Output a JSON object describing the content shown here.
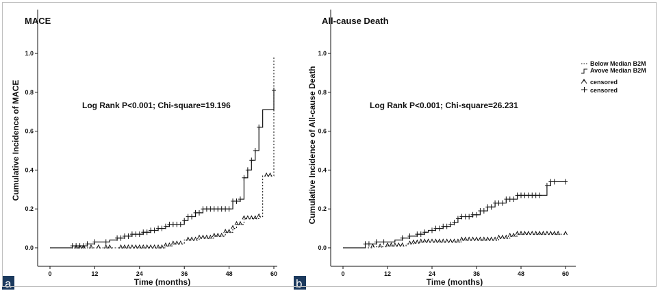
{
  "chart_data": [
    {
      "type": "line",
      "title": "MACE",
      "panel_label": "a",
      "xlabel": "Time (months)",
      "ylabel": "Cumulative Incidence of MACE",
      "xlim": [
        0,
        60
      ],
      "ylim": [
        0,
        1.0
      ],
      "xticks": [
        0,
        12,
        24,
        36,
        48,
        60
      ],
      "yticks": [
        0.0,
        0.2,
        0.4,
        0.6,
        0.8,
        1.0
      ],
      "annotation": "Log Rank P<0.001; Chi-square=19.196",
      "series": [
        {
          "style": "dotted",
          "points": [
            [
              0,
              0
            ],
            [
              10,
              0
            ],
            [
              30,
              0
            ],
            [
              31,
              0.01
            ],
            [
              33,
              0.02
            ],
            [
              36,
              0.04
            ],
            [
              40,
              0.05
            ],
            [
              44,
              0.06
            ],
            [
              47,
              0.08
            ],
            [
              49,
              0.1
            ],
            [
              50,
              0.12
            ],
            [
              52,
              0.15
            ],
            [
              56,
              0.16
            ],
            [
              57,
              0.37
            ],
            [
              60,
              0.37
            ],
            [
              60,
              0.98
            ]
          ],
          "censored": [
            7,
            8,
            9,
            11,
            13,
            15,
            16,
            19,
            20,
            21,
            22,
            23,
            24,
            25,
            26,
            27,
            28,
            29,
            30,
            31,
            32,
            33,
            34,
            35,
            37,
            38,
            39,
            40,
            41,
            42,
            43,
            44,
            45,
            46,
            47,
            48,
            49,
            50,
            51,
            52,
            53,
            54,
            55,
            56,
            58,
            59
          ]
        },
        {
          "style": "solid",
          "points": [
            [
              0,
              0
            ],
            [
              5,
              0
            ],
            [
              6,
              0.01
            ],
            [
              10,
              0.02
            ],
            [
              12,
              0.03
            ],
            [
              16,
              0.04
            ],
            [
              18,
              0.05
            ],
            [
              20,
              0.06
            ],
            [
              22,
              0.07
            ],
            [
              25,
              0.08
            ],
            [
              27,
              0.09
            ],
            [
              29,
              0.1
            ],
            [
              31,
              0.11
            ],
            [
              32,
              0.12
            ],
            [
              36,
              0.14
            ],
            [
              37,
              0.16
            ],
            [
              39,
              0.18
            ],
            [
              41,
              0.2
            ],
            [
              48,
              0.2
            ],
            [
              49,
              0.24
            ],
            [
              51,
              0.25
            ],
            [
              52,
              0.36
            ],
            [
              53,
              0.4
            ],
            [
              54,
              0.45
            ],
            [
              55,
              0.5
            ],
            [
              56,
              0.62
            ],
            [
              57,
              0.71
            ],
            [
              60,
              0.71
            ],
            [
              60,
              0.81
            ]
          ],
          "censored": [
            6,
            7,
            8,
            9,
            10,
            12,
            15,
            18,
            19,
            20,
            21,
            22,
            23,
            24,
            25,
            26,
            27,
            28,
            29,
            30,
            31,
            32,
            33,
            34,
            35,
            36,
            37,
            38,
            39,
            40,
            41,
            42,
            43,
            44,
            45,
            46,
            47,
            48,
            49,
            50,
            51,
            52,
            53,
            54,
            55,
            56,
            60
          ]
        }
      ]
    },
    {
      "type": "line",
      "title": "All-cause Death",
      "panel_label": "b",
      "xlabel": "Time (months)",
      "ylabel": "Cumulative Incidence of All-cause Death",
      "xlim": [
        0,
        60
      ],
      "ylim": [
        0,
        1.0
      ],
      "xticks": [
        0,
        12,
        24,
        36,
        48,
        60
      ],
      "yticks": [
        0.0,
        0.2,
        0.4,
        0.6,
        0.8,
        1.0
      ],
      "annotation": "Log Rank P<0.001; Chi-square=26.231",
      "series": [
        {
          "style": "dotted",
          "points": [
            [
              0,
              0
            ],
            [
              6,
              0
            ],
            [
              8,
              0.005
            ],
            [
              12,
              0.01
            ],
            [
              17,
              0.02
            ],
            [
              19,
              0.025
            ],
            [
              21,
              0.03
            ],
            [
              32,
              0.04
            ],
            [
              42,
              0.05
            ],
            [
              45,
              0.06
            ],
            [
              47,
              0.07
            ],
            [
              60,
              0.07
            ]
          ],
          "censored": [
            8,
            10,
            12,
            13,
            14,
            15,
            16,
            18,
            19,
            20,
            21,
            22,
            23,
            24,
            25,
            26,
            27,
            28,
            29,
            30,
            31,
            32,
            33,
            34,
            35,
            36,
            37,
            38,
            39,
            40,
            41,
            42,
            43,
            44,
            45,
            46,
            47,
            48,
            49,
            50,
            51,
            52,
            53,
            54,
            55,
            56,
            57,
            58,
            60
          ]
        },
        {
          "style": "solid",
          "points": [
            [
              0,
              0
            ],
            [
              4,
              0
            ],
            [
              6,
              0.02
            ],
            [
              9,
              0.03
            ],
            [
              14,
              0.04
            ],
            [
              16,
              0.05
            ],
            [
              18,
              0.06
            ],
            [
              20,
              0.07
            ],
            [
              22,
              0.08
            ],
            [
              23,
              0.09
            ],
            [
              25,
              0.1
            ],
            [
              27,
              0.11
            ],
            [
              29,
              0.12
            ],
            [
              30,
              0.13
            ],
            [
              31,
              0.15
            ],
            [
              32,
              0.16
            ],
            [
              35,
              0.17
            ],
            [
              37,
              0.19
            ],
            [
              39,
              0.21
            ],
            [
              41,
              0.23
            ],
            [
              44,
              0.25
            ],
            [
              47,
              0.27
            ],
            [
              54,
              0.27
            ],
            [
              55,
              0.32
            ],
            [
              56,
              0.34
            ],
            [
              60,
              0.34
            ]
          ],
          "censored": [
            6,
            7,
            9,
            11,
            16,
            18,
            20,
            21,
            22,
            24,
            25,
            26,
            27,
            28,
            29,
            30,
            31,
            32,
            33,
            34,
            35,
            36,
            37,
            38,
            39,
            40,
            41,
            42,
            43,
            44,
            45,
            46,
            47,
            48,
            49,
            50,
            51,
            52,
            53,
            55,
            56,
            57,
            60
          ]
        }
      ]
    }
  ],
  "legend": {
    "placement": "right",
    "items": [
      {
        "label": "Below Median B2M",
        "symbol": "dotted-line"
      },
      {
        "label": "Avove Median B2M",
        "symbol": "solid-line"
      },
      {
        "label": "censored",
        "symbol": "triangle-censor-mark"
      },
      {
        "label": "censored",
        "symbol": "plus-censor-mark"
      }
    ]
  }
}
